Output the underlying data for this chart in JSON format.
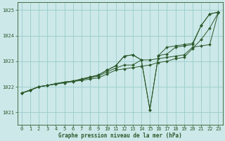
{
  "title": "Graphe pression niveau de la mer (hPa)",
  "background_color": "#cce8e8",
  "grid_color": "#99cccc",
  "line_color": "#2d5a2d",
  "xlim": [
    -0.5,
    23.5
  ],
  "ylim": [
    1020.5,
    1025.3
  ],
  "xticks": [
    0,
    1,
    2,
    3,
    4,
    5,
    6,
    7,
    8,
    9,
    10,
    11,
    12,
    13,
    14,
    15,
    16,
    17,
    18,
    19,
    20,
    21,
    22,
    23
  ],
  "yticks": [
    1021,
    1022,
    1023,
    1024,
    1025
  ],
  "series": [
    {
      "x": [
        0,
        1,
        2,
        3,
        4,
        5,
        6,
        7,
        8,
        9,
        10,
        11,
        12,
        13,
        14,
        15,
        16,
        17,
        18,
        19,
        20,
        21,
        22,
        23
      ],
      "y": [
        1021.75,
        1021.85,
        1022.0,
        1022.05,
        1022.1,
        1022.15,
        1022.2,
        1022.25,
        1022.3,
        1022.35,
        1022.5,
        1022.65,
        1022.7,
        1022.75,
        1022.8,
        1022.85,
        1022.95,
        1023.0,
        1023.1,
        1023.15,
        1023.5,
        1023.85,
        1024.3,
        1024.9
      ]
    },
    {
      "x": [
        0,
        1,
        2,
        3,
        4,
        5,
        6,
        7,
        8,
        9,
        10,
        11,
        12,
        13,
        14,
        15,
        16,
        17,
        18,
        19,
        20,
        21,
        22,
        23
      ],
      "y": [
        1021.75,
        1021.87,
        1022.0,
        1022.05,
        1022.12,
        1022.18,
        1022.22,
        1022.28,
        1022.35,
        1022.42,
        1022.58,
        1022.73,
        1022.85,
        1022.85,
        1023.05,
        1023.05,
        1023.1,
        1023.15,
        1023.2,
        1023.25,
        1023.55,
        1023.6,
        1023.65,
        1024.9
      ]
    },
    {
      "x": [
        0,
        1,
        2,
        3,
        4,
        5,
        6,
        7,
        8,
        9,
        10,
        11,
        12,
        13,
        14,
        15,
        16,
        17,
        18,
        19,
        20,
        21,
        22,
        23
      ],
      "y": [
        1021.75,
        1021.87,
        1022.0,
        1022.05,
        1022.12,
        1022.18,
        1022.22,
        1022.3,
        1022.38,
        1022.46,
        1022.65,
        1022.82,
        1023.2,
        1023.25,
        1023.05,
        1021.1,
        1023.22,
        1023.28,
        1023.55,
        1023.6,
        1023.65,
        1024.4,
        1024.85,
        1024.92
      ]
    },
    {
      "x": [
        0,
        1,
        2,
        3,
        4,
        5,
        6,
        7,
        8,
        9,
        10,
        11,
        12,
        13,
        14,
        15,
        16,
        17,
        18,
        19,
        20,
        21,
        22,
        23
      ],
      "y": [
        1021.75,
        1021.87,
        1022.0,
        1022.05,
        1022.12,
        1022.18,
        1022.22,
        1022.3,
        1022.38,
        1022.46,
        1022.65,
        1022.82,
        1023.2,
        1023.25,
        1023.05,
        1021.1,
        1023.22,
        1023.55,
        1023.6,
        1023.65,
        1023.7,
        1024.4,
        1024.85,
        1024.92
      ]
    }
  ]
}
